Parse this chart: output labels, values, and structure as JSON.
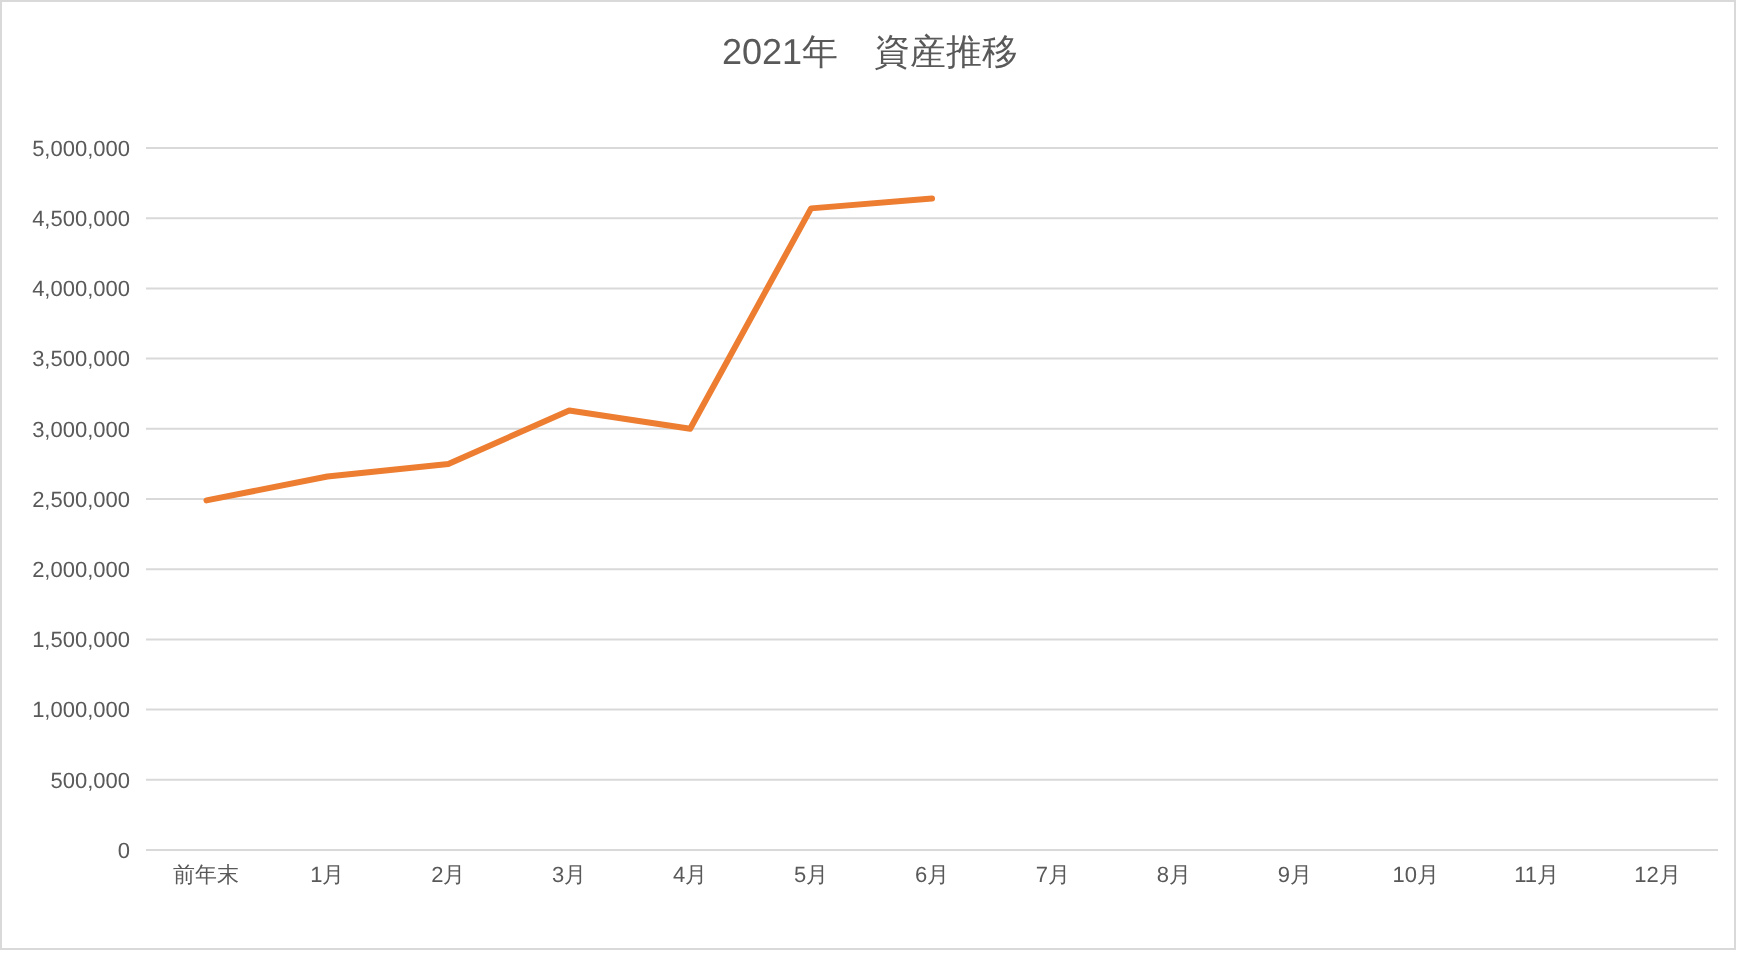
{
  "chart_data": {
    "type": "line",
    "title": "2021年　資産推移",
    "categories": [
      "前年末",
      "1月",
      "2月",
      "3月",
      "4月",
      "5月",
      "6月",
      "7月",
      "8月",
      "9月",
      "10月",
      "11月",
      "12月"
    ],
    "series": [
      {
        "color": "#ed7d31",
        "values": [
          2490000,
          2660000,
          2750000,
          3130000,
          3000000,
          4570000,
          4640000,
          null,
          null,
          null,
          null,
          null,
          null
        ]
      }
    ],
    "ylim": [
      0,
      5000000
    ],
    "yticks": [
      {
        "value": 0,
        "label": "0"
      },
      {
        "value": 500000,
        "label": "500,000"
      },
      {
        "value": 1000000,
        "label": "1,000,000"
      },
      {
        "value": 1500000,
        "label": "1,500,000"
      },
      {
        "value": 2000000,
        "label": "2,000,000"
      },
      {
        "value": 2500000,
        "label": "2,500,000"
      },
      {
        "value": 3000000,
        "label": "3,000,000"
      },
      {
        "value": 3500000,
        "label": "3,500,000"
      },
      {
        "value": 4000000,
        "label": "4,000,000"
      },
      {
        "value": 4500000,
        "label": "4,500,000"
      },
      {
        "value": 5000000,
        "label": "5,000,000"
      }
    ],
    "grid": "y",
    "marker": "none",
    "line_style": "solid"
  }
}
